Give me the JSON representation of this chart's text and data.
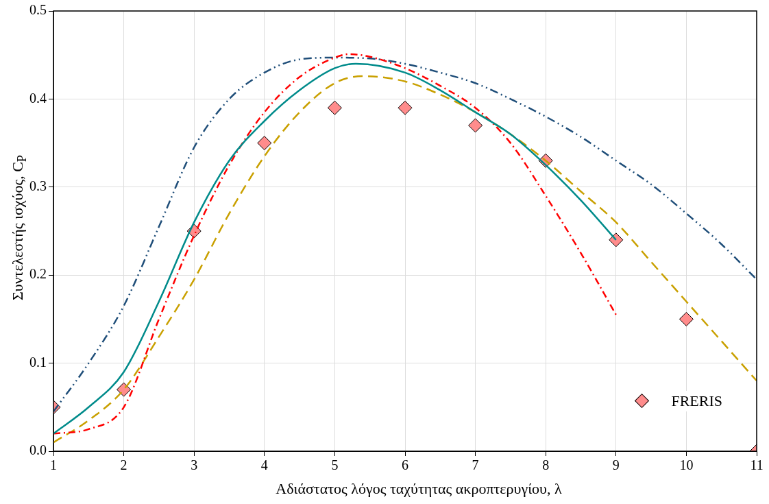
{
  "chart_data": {
    "type": "line",
    "xlabel": "Αδιάστατος λόγος ταχύτητας ακροπτερυγίου, λ",
    "ylabel": "Συντελεστής ισχύος, C$_{P}$",
    "xlim": [
      1,
      11
    ],
    "xticks": [
      1,
      2,
      3,
      4,
      5,
      6,
      7,
      8,
      9,
      10,
      11
    ],
    "ylim": [
      0,
      0.5
    ],
    "yticks": [
      {
        "value": 0,
        "label": "0.0"
      },
      {
        "value": 0.1,
        "label": "0.1"
      },
      {
        "value": 0.2,
        "label": "0.2"
      },
      {
        "value": 0.3,
        "label": "0.3"
      },
      {
        "value": 0.4,
        "label": "0.4"
      },
      {
        "value": 0.5,
        "label": "0.5"
      }
    ],
    "grid": true,
    "legend": "bottom right",
    "marker": "none",
    "series": [
      {
        "color": "#008b8b",
        "line_style": "solid",
        "x": [
          1,
          1.5,
          2,
          2.5,
          3,
          3.5,
          4,
          4.5,
          5,
          5.3,
          6,
          6.5,
          7,
          7.5,
          8,
          8.5,
          9
        ],
        "values": [
          0.02,
          0.05,
          0.09,
          0.17,
          0.26,
          0.33,
          0.375,
          0.41,
          0.435,
          0.44,
          0.43,
          0.41,
          0.385,
          0.36,
          0.325,
          0.285,
          0.24
        ]
      },
      {
        "color": "#ff0000",
        "line_style": "dashdot",
        "x": [
          1,
          1.5,
          2,
          2.5,
          3,
          3.5,
          4,
          4.5,
          5,
          5.2,
          5.5,
          6,
          6.5,
          7,
          7.5,
          8,
          8.5,
          9
        ],
        "values": [
          0.02,
          0.025,
          0.05,
          0.15,
          0.245,
          0.325,
          0.385,
          0.425,
          0.447,
          0.451,
          0.448,
          0.435,
          0.415,
          0.39,
          0.35,
          0.29,
          0.225,
          0.155
        ]
      },
      {
        "type": "scatter",
        "name": "FRERIS",
        "color": "#ff8c8c",
        "marker": "diamond",
        "x": [
          1,
          2,
          3,
          4,
          5,
          6,
          7,
          8,
          9,
          10,
          11
        ],
        "values": [
          0.05,
          0.07,
          0.25,
          0.35,
          0.39,
          0.39,
          0.37,
          0.33,
          0.24,
          0.15,
          0
        ]
      },
      {
        "color": "#c9a000",
        "line_style": "dashed",
        "x": [
          1,
          1.5,
          2,
          2.5,
          3,
          3.5,
          4,
          4.5,
          5,
          5.4,
          6,
          6.5,
          7,
          7.5,
          8,
          8.5,
          9,
          9.5,
          10,
          10.5,
          11
        ],
        "values": [
          0.01,
          0.035,
          0.07,
          0.13,
          0.195,
          0.27,
          0.335,
          0.385,
          0.418,
          0.426,
          0.42,
          0.405,
          0.385,
          0.36,
          0.33,
          0.295,
          0.26,
          0.215,
          0.17,
          0.125,
          0.08
        ]
      },
      {
        "color": "#1f4e79",
        "line_style": "dashdotdot",
        "x": [
          1,
          1.5,
          2,
          2.5,
          3,
          3.5,
          4,
          4.5,
          5,
          5.5,
          6,
          6.5,
          7,
          7.5,
          8,
          8.5,
          9,
          9.5,
          10,
          10.5,
          11
        ],
        "values": [
          0.045,
          0.1,
          0.165,
          0.255,
          0.345,
          0.4,
          0.43,
          0.445,
          0.447,
          0.446,
          0.44,
          0.43,
          0.418,
          0.4,
          0.38,
          0.357,
          0.33,
          0.303,
          0.27,
          0.235,
          0.195
        ]
      }
    ]
  }
}
